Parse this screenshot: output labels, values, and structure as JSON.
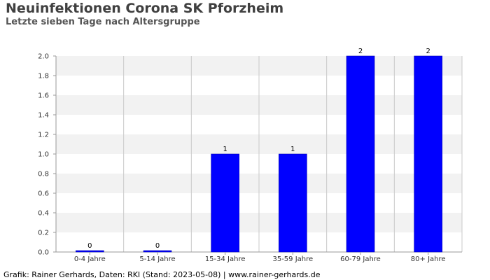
{
  "header": {
    "title": "Neuinfektionen Corona SK Pforzheim",
    "subtitle": "Letzte sieben Tage nach Altersgruppe"
  },
  "footer": {
    "text": "Grafik: Rainer Gerhards, Daten: RKI (Stand: 2023-05-08) | www.rainer-gerhards.de"
  },
  "colors": {
    "bar": "#0000ff",
    "band": "#f2f2f2",
    "grid_vertical": "#c8c8c8",
    "axis": "#999999"
  },
  "chart_data": {
    "type": "bar",
    "title": "Neuinfektionen Corona SK Pforzheim",
    "subtitle": "Letzte sieben Tage nach Altersgruppe",
    "categories": [
      "0-4 Jahre",
      "5-14 Jahre",
      "15-34 Jahre",
      "35-59 Jahre",
      "60-79 Jahre",
      "80+ Jahre"
    ],
    "values": [
      0,
      0,
      1,
      1,
      2,
      2
    ],
    "data_labels": [
      "0",
      "0",
      "1",
      "1",
      "2",
      "2"
    ],
    "ylim": [
      0,
      2
    ],
    "yticks": [
      "0.0",
      "0.2",
      "0.4",
      "0.6",
      "0.8",
      "1.0",
      "1.2",
      "1.4",
      "1.6",
      "1.8",
      "2.0"
    ],
    "grid": "alternating horizontal bands, vertical category separators",
    "legend": "none"
  }
}
